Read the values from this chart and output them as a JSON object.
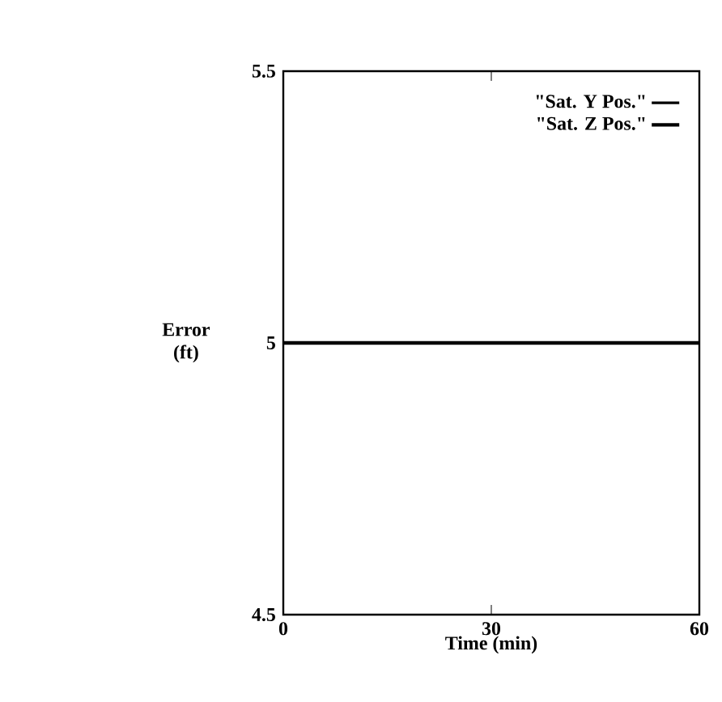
{
  "chart_data": {
    "type": "line",
    "xlabel": "Time (min)",
    "ylabel": "Error (ft)",
    "x": [
      0,
      60
    ],
    "xlim": [
      0,
      60
    ],
    "ylim": [
      4.5,
      5.5
    ],
    "xticks": [
      0,
      30,
      60
    ],
    "yticks": [
      4.5,
      5,
      5.5
    ],
    "legend": "top right",
    "series": [
      {
        "name": "\"Sat. Y Pos.\"",
        "color": "#000000",
        "values": [
          null,
          null
        ]
      },
      {
        "name": "\"Sat. Z Pos.\"",
        "color": "#000000",
        "values": [
          5,
          5
        ]
      }
    ]
  }
}
